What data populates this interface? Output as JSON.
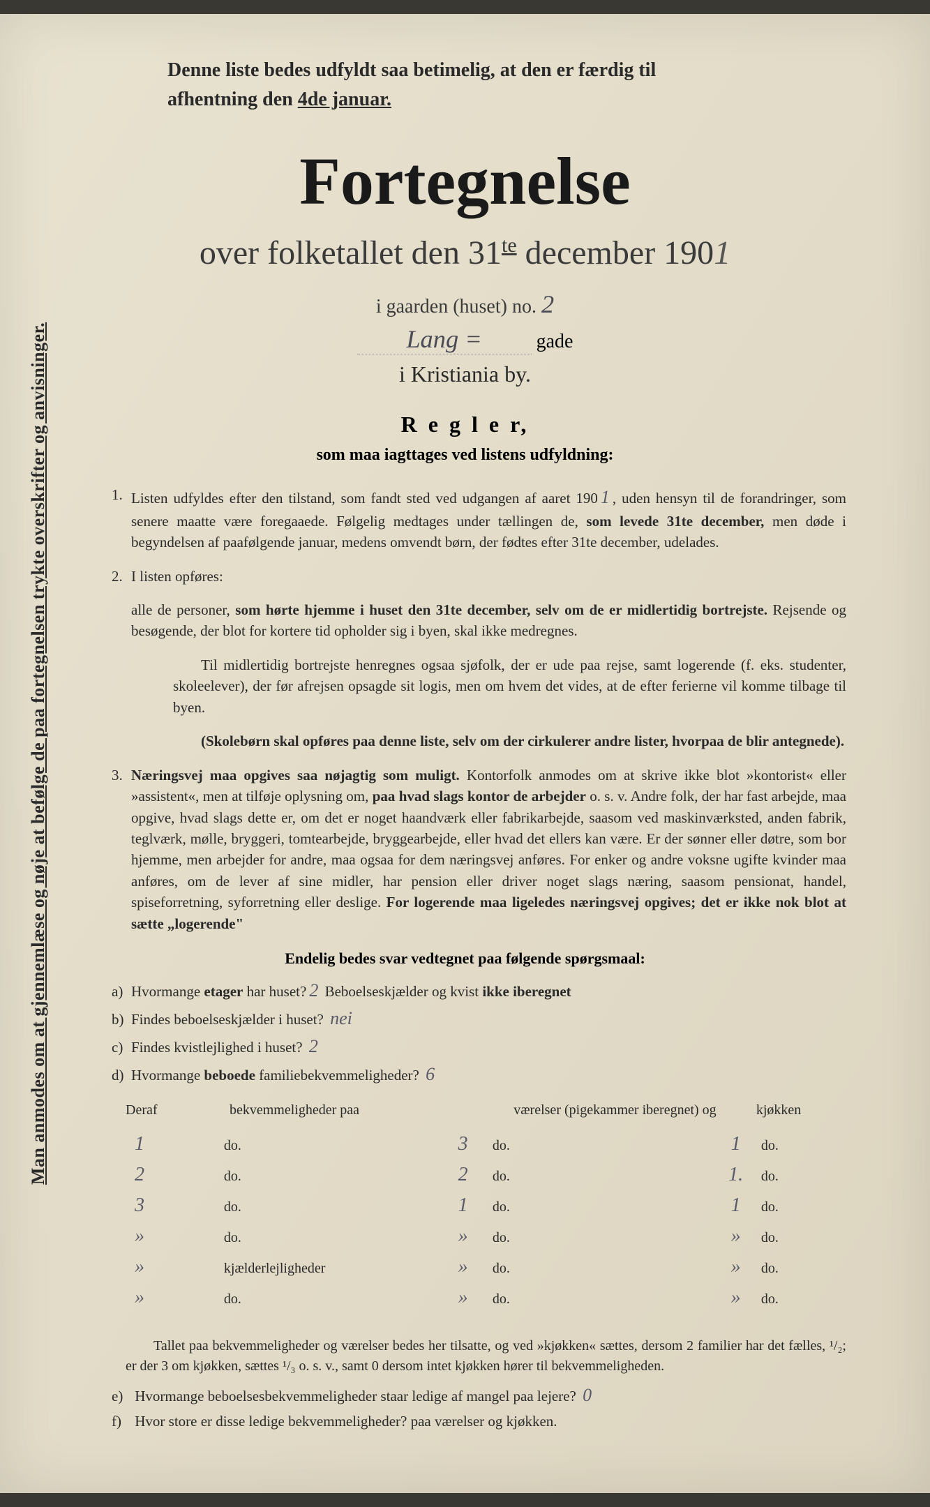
{
  "colors": {
    "paper": "#e8e2d0",
    "paper_dark": "#ddd5c0",
    "ink": "#2a2a2a",
    "ink_dark": "#1a1a1a",
    "handwriting": "#5a5a6a",
    "frame": "#3a3832"
  },
  "sideText": "Man anmodes om at gjennemlæse og nøje at befølge de paa fortegnelsen trykte overskrifter og anvisninger.",
  "headerNote": {
    "line1": "Denne liste bedes udfyldt saa betimelig, at den er færdig til",
    "line2_prefix": "afhentning den ",
    "line2_underline": "4de januar."
  },
  "titleMain": "Fortegnelse",
  "titleSub": {
    "prefix": "over folketallet den 31",
    "sup": "te",
    "mid": " december 190",
    "year_hw": "1"
  },
  "gaarden": {
    "prefix": "i gaarden (huset) no.  ",
    "no_hw": "2"
  },
  "gade": {
    "name_hw": "Lang =",
    "suffix": "gade"
  },
  "city": "i Kristiania by.",
  "reglerTitle": "R e g l e r,",
  "reglerSub": "som maa iagttages ved listens udfyldning:",
  "rules": [
    {
      "num": "1.",
      "html": "Listen udfyldes efter den tilstand, som fandt sted ved udgangen af aaret 190<span class='hw-ans'>1</span>, uden hensyn til de forandringer, som senere maatte være foregaaede. Følgelig medtages under tællingen de, <b>som levede 31te december,</b> men døde i begyndelsen af paafølgende januar, medens omvendt børn, der fødtes efter 31te december, udelades."
    },
    {
      "num": "2.",
      "html": "I listen opføres:"
    },
    {
      "num": "",
      "html": "alle de personer, <b>som hørte hjemme i huset den 31te december, selv om de er midlertidig bortrejste.</b> Rejsende og besøgende, der blot for kortere tid opholder sig i byen, skal ikke medregnes."
    },
    {
      "num": "",
      "indent": true,
      "html": "Til midlertidig bortrejste henregnes ogsaa sjøfolk, der er ude paa rejse, samt logerende (f. eks. studenter, skoleelever), der før afrejsen opsagde sit logis, men om hvem det vides, at de efter ferierne vil komme tilbage til byen."
    },
    {
      "num": "",
      "indent": true,
      "html": "<b>(Skolebørn skal opføres paa denne liste, selv om der cirkulerer andre lister, hvorpaa de blir antegnede).</b>"
    },
    {
      "num": "3.",
      "html": "<b>Næringsvej maa opgives saa nøjagtig som muligt.</b> Kontorfolk anmodes om at skrive ikke blot »kontorist« eller »assistent«, men at tilføje oplysning om, <b>paa hvad slags kontor de arbejder</b> o. s. v. Andre folk, der har fast arbejde, maa opgive, hvad slags dette er, om det er noget haandværk eller fabrikarbejde, saasom ved maskinværksted, anden fabrik, teglværk, mølle, bryggeri, tomtearbejde, bryggearbejde, eller hvad det ellers kan være. Er der sønner eller døtre, som bor hjemme, men arbejder for andre, maa ogsaa for dem næringsvej anføres. For enker og andre voksne ugifte kvinder maa anføres, om de lever af sine midler, har pension eller driver noget slags næring, saasom pensionat, handel, spiseforretning, syforretning eller deslige. <b>For logerende maa ligeledes næringsvej opgives; det er ikke nok blot at sætte „logerende\"</b>"
    }
  ],
  "endelig": "Endelig bedes svar vedtegnet paa følgende spørgsmaal:",
  "questions": [
    {
      "lbl": "a)",
      "pre": "Hvormange ",
      "bold": "etager",
      "post": " har huset?",
      "ans": "2",
      "tail": " Beboelseskjælder og kvist <b>ikke iberegnet</b>"
    },
    {
      "lbl": "b)",
      "pre": "Findes beboelseskjælder i huset? ",
      "ans": "nei",
      "tail": ""
    },
    {
      "lbl": "c)",
      "pre": "Findes kvistlejlighed i huset?   ",
      "ans": "2",
      "tail": ""
    },
    {
      "lbl": "d)",
      "pre": "Hvormange ",
      "bold": "beboede",
      "post": " familiebekvemmeligheder? ",
      "ans": "6",
      "tail": ""
    }
  ],
  "table": {
    "header": {
      "c1": "Deraf",
      "c2": "bekvemmeligheder paa",
      "c3": "",
      "c4": "værelser (pigekammer iberegnet) og",
      "c5": "kjøkken"
    },
    "rows": [
      {
        "a": "1",
        "c2": "do.",
        "b": "3",
        "c4": "do.",
        "c": "1",
        "c5": "do."
      },
      {
        "a": "2",
        "c2": "do.",
        "b": "2",
        "c4": "do.",
        "c": "1.",
        "c5": "do."
      },
      {
        "a": "3",
        "c2": "do.",
        "b": "1",
        "c4": "do.",
        "c": "1",
        "c5": "do."
      },
      {
        "a": "»",
        "c2": "do.",
        "b": "»",
        "c4": "do.",
        "c": "»",
        "c5": "do."
      },
      {
        "a": "»",
        "c2": "kjælderlejligheder",
        "b": "»",
        "c4": "do.",
        "c": "»",
        "c5": "do."
      },
      {
        "a": "»",
        "c2": "do.",
        "b": "»",
        "c4": "do.",
        "c": "»",
        "c5": "do."
      }
    ]
  },
  "footerPara": "Tallet paa bekvemmeligheder og værelser bedes her tilsatte, og ved »kjøkken« sættes, dersom 2 familier har det fælles, ¹/₂; er der 3 om kjøkken, sættes ¹/₃ o. s. v., samt 0 dersom intet kjøkken hører til bekvemmeligheden.",
  "qE": {
    "lbl": "e)",
    "text": "Hvormange beboelsesbekvemmeligheder staar ledige af mangel paa lejere? ",
    "ans": "0"
  },
  "qF": {
    "lbl": "f)",
    "text": "Hvor store er disse ledige bekvemmeligheder?          paa          værelser og          kjøkken."
  }
}
